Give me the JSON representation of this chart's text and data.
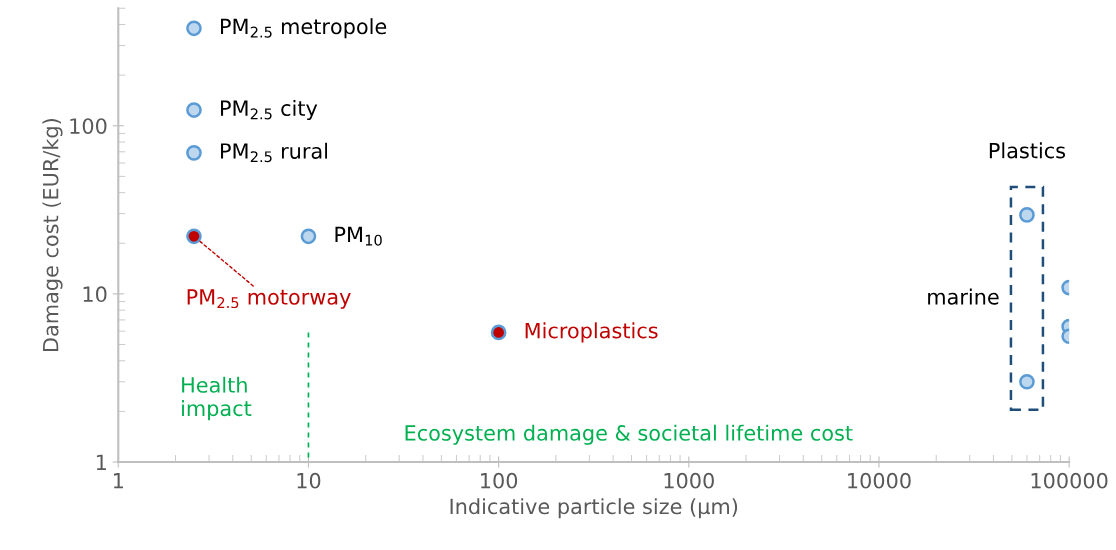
{
  "chart_data": {
    "type": "scatter",
    "xlabel": "Indicative particle size (µm)",
    "ylabel": "Damage cost (EUR/kg)",
    "log": "xy",
    "xlim": [
      1,
      100000
    ],
    "xticks": [
      1,
      10,
      100,
      1000,
      10000,
      100000
    ],
    "ylim": [
      1,
      500
    ],
    "yticks": [
      1,
      10,
      100
    ],
    "grid": false,
    "legend": false,
    "marker": "circle",
    "series": [
      {
        "color": "#5b9bd5",
        "x": [
          2.5,
          2.5,
          2.5,
          10,
          100000,
          100000,
          100000
        ],
        "values": [
          380,
          124,
          69,
          22,
          10.9,
          6.4,
          5.6
        ]
      },
      {
        "color": "#c00000",
        "x": [
          2.5,
          100
        ],
        "values": [
          22,
          5.9
        ]
      },
      {
        "color": "#5b9bd5",
        "x": [
          60000,
          60000
        ],
        "values": [
          29.5,
          3.0
        ]
      }
    ],
    "ref_lines": [
      {
        "axis": "x",
        "value": 10,
        "label": null,
        "color": "#00b050",
        "line_style": "dashed"
      }
    ],
    "annotations": [
      {
        "text": "PM$_{2.5}$ metropole",
        "x": 2.5,
        "y": 380
      },
      {
        "text": "PM$_{2.5}$ city",
        "x": 2.5,
        "y": 124
      },
      {
        "text": "PM$_{2.5}$ rural",
        "x": 2.5,
        "y": 69
      },
      {
        "text": "PM$_{10}$",
        "x": 10,
        "y": 22
      },
      {
        "text": "PM$_{2.5}$ motorway",
        "x": 2.5,
        "y": 22
      },
      {
        "text": "Microplastics",
        "x": 100,
        "y": 5.9
      },
      {
        "text": "Plastics",
        "x": 60000,
        "y": 29.5
      },
      "marine",
      "Health\nimpact",
      "Ecosystem damage & societal lifetime cost"
    ]
  }
}
